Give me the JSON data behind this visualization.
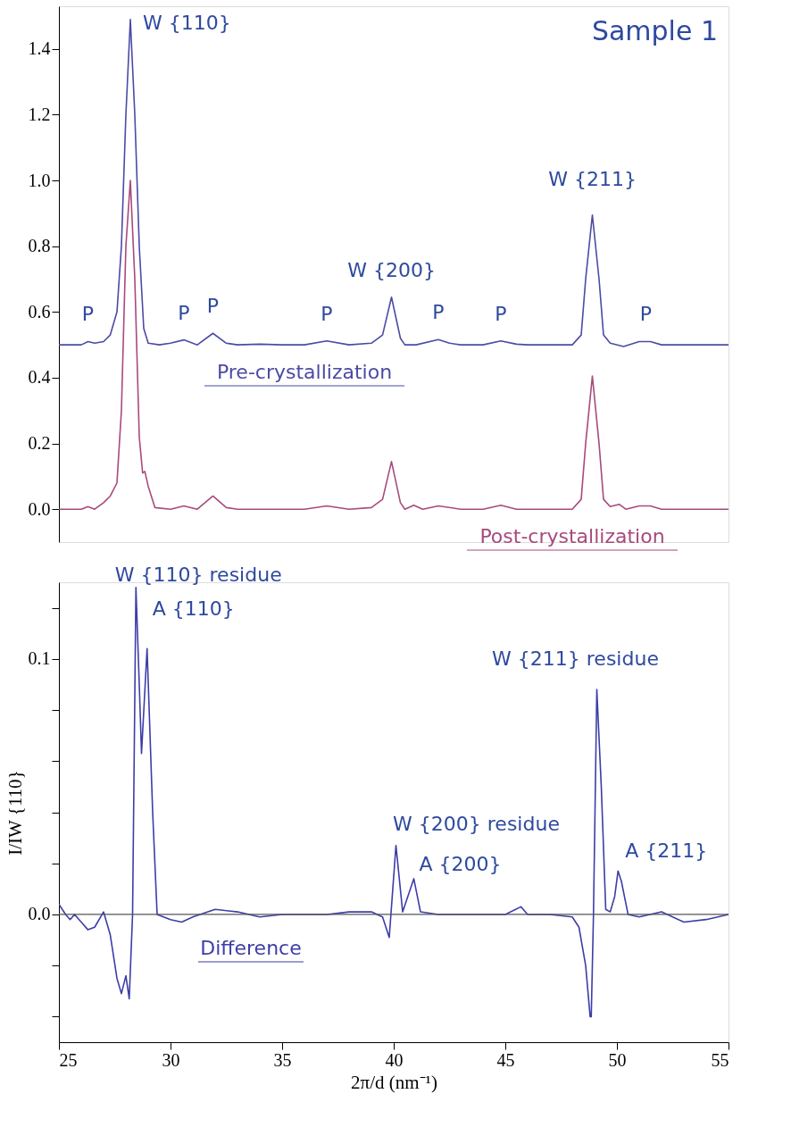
{
  "chart_data": [
    {
      "type": "line",
      "xlim": [
        25,
        55
      ],
      "xticks": [
        25,
        30,
        35,
        40,
        45,
        50,
        55
      ],
      "ylim": [
        -0.1,
        1.53
      ],
      "yticks": [
        {
          "value": 0,
          "label": "0.0"
        },
        {
          "value": 0.2,
          "label": "0.2"
        },
        {
          "value": 0.4,
          "label": "0.4"
        },
        {
          "value": 0.6,
          "label": "0.6"
        },
        {
          "value": 0.8,
          "label": "0.8"
        },
        {
          "value": 1.0,
          "label": "1.0"
        },
        {
          "value": 1.2,
          "label": "1.2"
        },
        {
          "value": 1.4,
          "label": "1.4"
        }
      ],
      "tick_labels": "y",
      "grid": false,
      "x": [
        25,
        26,
        26.3,
        26.6,
        27,
        27.3,
        27.6,
        27.8,
        28.0,
        28.2,
        28.4,
        28.6,
        28.8,
        29.0,
        29.5,
        30,
        30.6,
        31.2,
        31.9,
        32.5,
        33,
        34,
        35,
        36,
        37,
        38,
        39,
        39.5,
        39.9,
        40.3,
        40.5,
        41,
        42,
        42.5,
        43,
        44,
        44.8,
        45.5,
        46,
        47,
        48,
        48.4,
        48.6,
        48.9,
        49.2,
        49.4,
        49.7,
        50.3,
        51,
        51.5,
        52,
        53,
        54,
        55
      ],
      "series": [
        {
          "name": "Pre-crystallization",
          "color": "#4b4ba5",
          "values": [
            0.5,
            0.5,
            0.51,
            0.505,
            0.51,
            0.53,
            0.6,
            0.8,
            1.2,
            1.49,
            1.2,
            0.8,
            0.55,
            0.505,
            0.5,
            0.505,
            0.515,
            0.5,
            0.535,
            0.505,
            0.5,
            0.502,
            0.5,
            0.5,
            0.512,
            0.5,
            0.505,
            0.53,
            0.645,
            0.52,
            0.5,
            0.5,
            0.516,
            0.505,
            0.5,
            0.5,
            0.512,
            0.502,
            0.5,
            0.5,
            0.5,
            0.53,
            0.7,
            0.895,
            0.7,
            0.53,
            0.505,
            0.495,
            0.51,
            0.51,
            0.5,
            0.5,
            0.5,
            0.5
          ]
        },
        {
          "name": "Post-crystallization",
          "color": "#a84a7c",
          "x": [
            25,
            26,
            26.3,
            26.6,
            27,
            27.3,
            27.6,
            27.8,
            28.0,
            28.2,
            28.4,
            28.6,
            28.75,
            28.85,
            29.0,
            29.3,
            30,
            30.6,
            31.2,
            31.9,
            32.5,
            33,
            34,
            35,
            36,
            37,
            38,
            39,
            39.5,
            39.9,
            40.3,
            40.5,
            40.9,
            41.3,
            42,
            43,
            44,
            44.8,
            45.5,
            46,
            47,
            48,
            48.4,
            48.6,
            48.9,
            49.2,
            49.4,
            49.7,
            50.1,
            50.4,
            51,
            51.5,
            52,
            53,
            54,
            55
          ],
          "values": [
            0.0,
            0.0,
            0.008,
            0.0,
            0.02,
            0.04,
            0.08,
            0.3,
            0.8,
            1.0,
            0.7,
            0.22,
            0.11,
            0.115,
            0.07,
            0.005,
            0.0,
            0.01,
            0.0,
            0.04,
            0.005,
            0.0,
            0.0,
            0.0,
            0.0,
            0.01,
            0.0,
            0.005,
            0.03,
            0.145,
            0.02,
            0.0,
            0.012,
            0.0,
            0.01,
            0.0,
            0.0,
            0.012,
            0.0,
            0.0,
            0.0,
            0.0,
            0.03,
            0.2,
            0.405,
            0.2,
            0.03,
            0.008,
            0.015,
            0.0,
            0.01,
            0.01,
            0.0,
            0.0,
            0.0,
            0.0
          ]
        }
      ],
      "annotations": [
        "Sample 1",
        {
          "text": "W {110}",
          "x": 28.2,
          "y": 1.49
        },
        {
          "text": "W {200}",
          "x": 39.9,
          "y": 0.645
        },
        {
          "text": "W {211}",
          "x": 48.9,
          "y": 0.895
        },
        {
          "text": "P",
          "x": 26.3,
          "y": 0.51
        },
        {
          "text": "P",
          "x": 30.6,
          "y": 0.515
        },
        {
          "text": "P",
          "x": 31.9,
          "y": 0.535
        },
        {
          "text": "P",
          "x": 37,
          "y": 0.512
        },
        {
          "text": "P",
          "x": 42,
          "y": 0.516
        },
        {
          "text": "P",
          "x": 44.8,
          "y": 0.512
        },
        {
          "text": "P",
          "x": 51.3,
          "y": 0.51
        }
      ]
    },
    {
      "type": "line",
      "xlabel": "2π/d (nm⁻¹)",
      "ylabel": "I/IW {110}",
      "xlim": [
        25,
        55
      ],
      "xticks": [
        25,
        30,
        35,
        40,
        45,
        50,
        55
      ],
      "ylim": [
        -0.05,
        0.13
      ],
      "yticks": [
        {
          "value": -0.04,
          "label": null
        },
        {
          "value": -0.02,
          "label": null
        },
        {
          "value": 0,
          "label": "0.0"
        },
        {
          "value": 0.02,
          "label": null
        },
        {
          "value": 0.04,
          "label": null
        },
        {
          "value": 0.06,
          "label": null
        },
        {
          "value": 0.08,
          "label": null
        },
        {
          "value": 0.1,
          "label": "0.1"
        },
        {
          "value": 0.12,
          "label": null
        }
      ],
      "grid": false,
      "x": [
        25.0,
        25.3,
        25.5,
        25.7,
        26.0,
        26.3,
        26.6,
        27.0,
        27.3,
        27.6,
        27.8,
        28.0,
        28.15,
        28.3,
        28.45,
        28.6,
        28.7,
        28.95,
        29.2,
        29.4,
        30,
        30.5,
        31,
        32,
        33,
        34,
        35,
        36,
        37,
        38,
        39,
        39.5,
        39.8,
        40.1,
        40.4,
        40.9,
        41.2,
        42,
        43,
        44,
        45,
        45.7,
        46,
        47,
        48,
        48.3,
        48.6,
        48.8,
        48.85,
        48.95,
        49.1,
        49.3,
        49.5,
        49.7,
        49.9,
        50.05,
        50.2,
        50.5,
        51,
        52,
        53,
        54,
        55
      ],
      "series": [
        {
          "name": "Difference",
          "color": "#3d3da8",
          "values": [
            0.004,
            0.0,
            -0.002,
            0.0,
            -0.003,
            -0.006,
            -0.005,
            0.001,
            -0.008,
            -0.025,
            -0.031,
            -0.024,
            -0.033,
            0.0,
            0.128,
            0.09,
            0.063,
            0.104,
            0.04,
            0.0,
            -0.002,
            -0.003,
            -0.001,
            0.002,
            0.001,
            -0.001,
            0.0,
            0.0,
            0.0,
            0.001,
            0.001,
            -0.001,
            -0.009,
            0.027,
            0.001,
            0.014,
            0.001,
            0.0,
            0.0,
            0.0,
            0.0,
            0.003,
            0.0,
            0.0,
            -0.001,
            -0.005,
            -0.02,
            -0.04,
            -0.04,
            0.0,
            0.088,
            0.05,
            0.002,
            0.001,
            0.007,
            0.017,
            0.013,
            0.0,
            -0.001,
            0.001,
            -0.003,
            -0.002,
            0.0
          ]
        }
      ],
      "ref_lines": [
        {
          "axis": "y",
          "value": 0,
          "color": "#555555"
        }
      ],
      "annotations": [
        {
          "text": "W {110} residue",
          "x": 28.45,
          "y": 0.128
        },
        {
          "text": "A {110}",
          "x": 28.95,
          "y": 0.104
        },
        {
          "text": "W {200} residue",
          "x": 40.1,
          "y": 0.027
        },
        {
          "text": "A {200}",
          "x": 40.9,
          "y": 0.014
        },
        {
          "text": "W {211} residue",
          "x": 49.1,
          "y": 0.088
        },
        {
          "text": "A {211}",
          "x": 50.05,
          "y": 0.017
        }
      ]
    }
  ]
}
